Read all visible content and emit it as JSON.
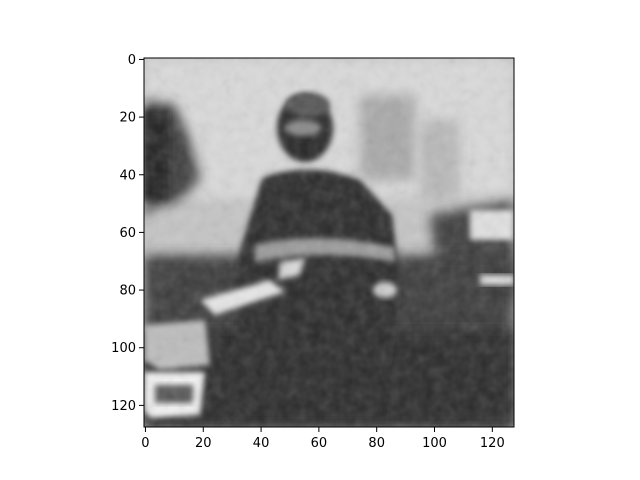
{
  "figure": {
    "type": "image",
    "description": "grayscale blurry image of a person in dark clothing outdoors"
  },
  "axes": {
    "x_ticks": [
      "0",
      "20",
      "40",
      "60",
      "80",
      "100",
      "120"
    ],
    "y_ticks": [
      "0",
      "20",
      "40",
      "60",
      "80",
      "100",
      "120"
    ],
    "x_range": [
      -0.5,
      127.5
    ],
    "y_range": [
      -0.5,
      127.5
    ],
    "colormap": "gray"
  }
}
